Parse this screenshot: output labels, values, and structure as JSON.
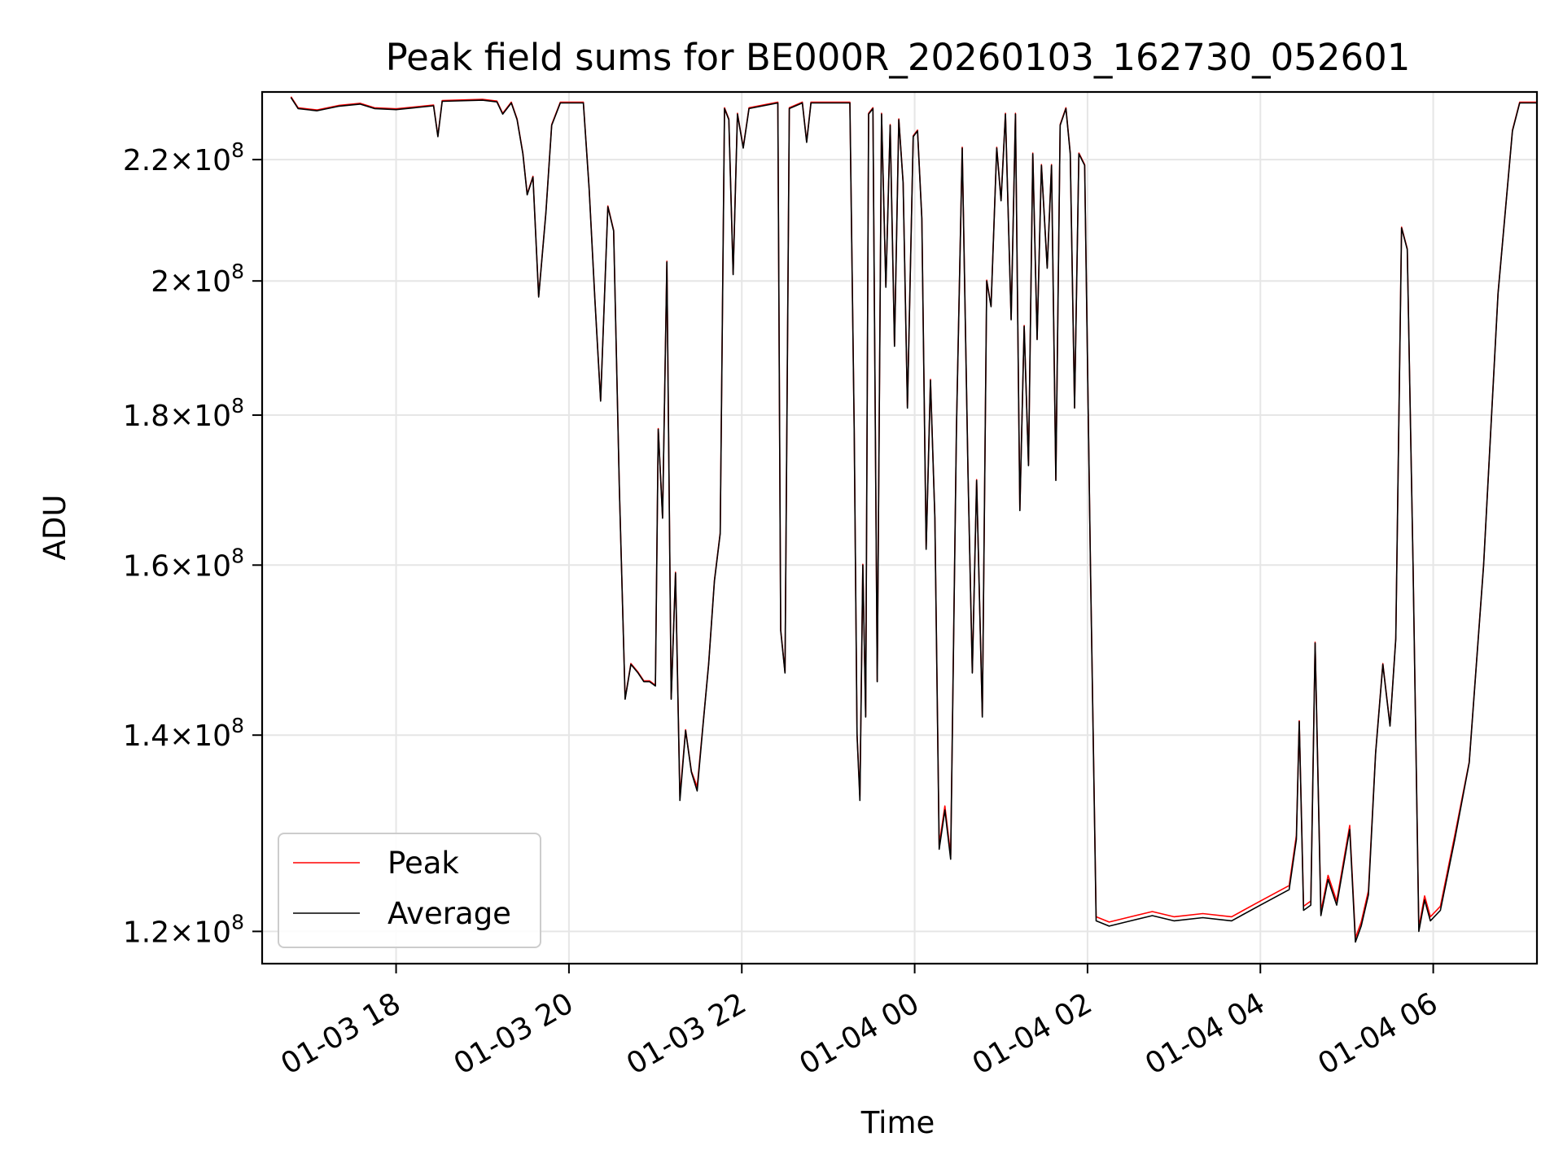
{
  "chart_data": {
    "type": "line",
    "title": "Peak field sums for BE000R_20260103_162730_052601",
    "xlabel": "Time",
    "ylabel": "ADU",
    "xlim": [
      "2026-01-03 16:27",
      "2026-01-04 07:12"
    ],
    "ylim": [
      117000000,
      232000000
    ],
    "y_scale": "log",
    "grid": true,
    "legend_position": "lower-left",
    "x_ticks": [
      {
        "t": "2026-01-03 18:00",
        "label": "01-03 18"
      },
      {
        "t": "2026-01-03 20:00",
        "label": "01-03 20"
      },
      {
        "t": "2026-01-03 22:00",
        "label": "01-03 22"
      },
      {
        "t": "2026-01-04 00:00",
        "label": "01-04 00"
      },
      {
        "t": "2026-01-04 02:00",
        "label": "01-04 02"
      },
      {
        "t": "2026-01-04 04:00",
        "label": "01-04 04"
      },
      {
        "t": "2026-01-04 06:00",
        "label": "01-04 06"
      }
    ],
    "y_ticks": [
      {
        "value": 120000000,
        "mantissa": "1.2",
        "exponent": "8"
      },
      {
        "value": 140000000,
        "mantissa": "1.4",
        "exponent": "8"
      },
      {
        "value": 160000000,
        "mantissa": "1.6",
        "exponent": "8"
      },
      {
        "value": 180000000,
        "mantissa": "1.8",
        "exponent": "8"
      },
      {
        "value": 200000000,
        "mantissa": "2",
        "exponent": "8"
      },
      {
        "value": 220000000,
        "mantissa": "2.2",
        "exponent": "8"
      }
    ],
    "series": [
      {
        "name": "Peak",
        "color": "#ff0000"
      },
      {
        "name": "Average",
        "color": "#000000"
      }
    ],
    "average_points": [
      [
        "2026-01-03 16:47",
        231000000
      ],
      [
        "2026-01-03 16:52",
        229000000
      ],
      [
        "2026-01-03 17:05",
        228600000
      ],
      [
        "2026-01-03 17:20",
        229400000
      ],
      [
        "2026-01-03 17:35",
        229800000
      ],
      [
        "2026-01-03 17:45",
        229000000
      ],
      [
        "2026-01-03 18:00",
        228800000
      ],
      [
        "2026-01-03 18:15",
        229200000
      ],
      [
        "2026-01-03 18:26",
        229500000
      ],
      [
        "2026-01-03 18:29",
        224000000
      ],
      [
        "2026-01-03 18:32",
        230300000
      ],
      [
        "2026-01-03 19:00",
        230500000
      ],
      [
        "2026-01-03 19:10",
        230200000
      ],
      [
        "2026-01-03 19:14",
        228000000
      ],
      [
        "2026-01-03 19:20",
        230000000
      ],
      [
        "2026-01-03 19:24",
        227000000
      ],
      [
        "2026-01-03 19:28",
        221000000
      ],
      [
        "2026-01-03 19:31",
        214000000
      ],
      [
        "2026-01-03 19:35",
        217000000
      ],
      [
        "2026-01-03 19:39",
        197500000
      ],
      [
        "2026-01-03 19:44",
        211000000
      ],
      [
        "2026-01-03 19:48",
        226000000
      ],
      [
        "2026-01-03 19:54",
        230000000
      ],
      [
        "2026-01-03 20:10",
        230000000
      ],
      [
        "2026-01-03 20:14",
        215000000
      ],
      [
        "2026-01-03 20:18",
        197000000
      ],
      [
        "2026-01-03 20:22",
        182000000
      ],
      [
        "2026-01-03 20:27",
        212000000
      ],
      [
        "2026-01-03 20:31",
        208000000
      ],
      [
        "2026-01-03 20:35",
        170000000
      ],
      [
        "2026-01-03 20:39",
        144000000
      ],
      [
        "2026-01-03 20:43",
        148000000
      ],
      [
        "2026-01-03 20:48",
        147000000
      ],
      [
        "2026-01-03 20:52",
        146000000
      ],
      [
        "2026-01-03 20:56",
        146000000
      ],
      [
        "2026-01-03 21:00",
        145500000
      ],
      [
        "2026-01-03 21:02",
        178000000
      ],
      [
        "2026-01-03 21:05",
        166000000
      ],
      [
        "2026-01-03 21:08",
        203000000
      ],
      [
        "2026-01-03 21:11",
        144000000
      ],
      [
        "2026-01-03 21:14",
        159000000
      ],
      [
        "2026-01-03 21:17",
        133000000
      ],
      [
        "2026-01-03 21:21",
        140500000
      ],
      [
        "2026-01-03 21:25",
        136000000
      ],
      [
        "2026-01-03 21:29",
        134000000
      ],
      [
        "2026-01-03 21:33",
        141000000
      ],
      [
        "2026-01-03 21:37",
        148000000
      ],
      [
        "2026-01-03 21:41",
        158000000
      ],
      [
        "2026-01-03 21:45",
        164000000
      ],
      [
        "2026-01-03 21:48",
        229000000
      ],
      [
        "2026-01-03 21:51",
        227000000
      ],
      [
        "2026-01-03 21:54",
        201000000
      ],
      [
        "2026-01-03 21:57",
        228000000
      ],
      [
        "2026-01-03 22:01",
        222000000
      ],
      [
        "2026-01-03 22:05",
        229000000
      ],
      [
        "2026-01-03 22:25",
        230000000
      ],
      [
        "2026-01-03 22:27",
        152000000
      ],
      [
        "2026-01-03 22:30",
        147000000
      ],
      [
        "2026-01-03 22:33",
        229000000
      ],
      [
        "2026-01-03 22:42",
        230000000
      ],
      [
        "2026-01-03 22:45",
        223000000
      ],
      [
        "2026-01-03 22:48",
        230000000
      ],
      [
        "2026-01-03 23:15",
        230000000
      ],
      [
        "2026-01-03 23:18",
        178000000
      ],
      [
        "2026-01-03 23:20",
        140000000
      ],
      [
        "2026-01-03 23:22",
        133000000
      ],
      [
        "2026-01-03 23:24",
        160000000
      ],
      [
        "2026-01-03 23:26",
        142000000
      ],
      [
        "2026-01-03 23:28",
        228000000
      ],
      [
        "2026-01-03 23:31",
        229000000
      ],
      [
        "2026-01-03 23:34",
        146000000
      ],
      [
        "2026-01-03 23:37",
        228000000
      ],
      [
        "2026-01-03 23:40",
        199000000
      ],
      [
        "2026-01-03 23:43",
        226000000
      ],
      [
        "2026-01-03 23:46",
        190000000
      ],
      [
        "2026-01-03 23:49",
        227000000
      ],
      [
        "2026-01-03 23:52",
        216000000
      ],
      [
        "2026-01-03 23:55",
        181000000
      ],
      [
        "2026-01-03 23:59",
        224000000
      ],
      [
        "2026-01-04 00:02",
        225000000
      ],
      [
        "2026-01-04 00:05",
        210000000
      ],
      [
        "2026-01-04 00:08",
        162000000
      ],
      [
        "2026-01-04 00:11",
        185000000
      ],
      [
        "2026-01-04 00:14",
        166000000
      ],
      [
        "2026-01-04 00:17",
        128000000
      ],
      [
        "2026-01-04 00:21",
        132000000
      ],
      [
        "2026-01-04 00:25",
        127000000
      ],
      [
        "2026-01-04 00:29",
        178000000
      ],
      [
        "2026-01-04 00:33",
        222000000
      ],
      [
        "2026-01-04 00:37",
        172000000
      ],
      [
        "2026-01-04 00:40",
        147000000
      ],
      [
        "2026-01-04 00:43",
        171000000
      ],
      [
        "2026-01-04 00:47",
        142000000
      ],
      [
        "2026-01-04 00:50",
        200000000
      ],
      [
        "2026-01-04 00:53",
        196000000
      ],
      [
        "2026-01-04 00:57",
        222000000
      ],
      [
        "2026-01-04 01:00",
        213000000
      ],
      [
        "2026-01-04 01:03",
        228000000
      ],
      [
        "2026-01-04 01:07",
        194000000
      ],
      [
        "2026-01-04 01:10",
        228000000
      ],
      [
        "2026-01-04 01:13",
        167000000
      ],
      [
        "2026-01-04 01:16",
        193000000
      ],
      [
        "2026-01-04 01:19",
        173000000
      ],
      [
        "2026-01-04 01:22",
        221000000
      ],
      [
        "2026-01-04 01:25",
        191000000
      ],
      [
        "2026-01-04 01:28",
        219000000
      ],
      [
        "2026-01-04 01:32",
        202000000
      ],
      [
        "2026-01-04 01:35",
        219000000
      ],
      [
        "2026-01-04 01:38",
        171000000
      ],
      [
        "2026-01-04 01:41",
        226000000
      ],
      [
        "2026-01-04 01:45",
        229000000
      ],
      [
        "2026-01-04 01:48",
        221000000
      ],
      [
        "2026-01-04 01:51",
        181000000
      ],
      [
        "2026-01-04 01:54",
        221000000
      ],
      [
        "2026-01-04 01:58",
        219000000
      ],
      [
        "2026-01-04 02:02",
        160000000
      ],
      [
        "2026-01-04 02:06",
        121000000
      ],
      [
        "2026-01-04 02:15",
        120500000
      ],
      [
        "2026-01-04 02:30",
        121000000
      ],
      [
        "2026-01-04 02:45",
        121500000
      ],
      [
        "2026-01-04 03:00",
        121000000
      ],
      [
        "2026-01-04 03:20",
        121300000
      ],
      [
        "2026-01-04 03:40",
        121000000
      ],
      [
        "2026-01-04 04:00",
        122500000
      ],
      [
        "2026-01-04 04:20",
        124000000
      ],
      [
        "2026-01-04 04:25",
        129000000
      ],
      [
        "2026-01-04 04:27",
        141500000
      ],
      [
        "2026-01-04 04:30",
        122000000
      ],
      [
        "2026-01-04 04:35",
        122500000
      ],
      [
        "2026-01-04 04:38",
        150500000
      ],
      [
        "2026-01-04 04:42",
        121500000
      ],
      [
        "2026-01-04 04:47",
        125000000
      ],
      [
        "2026-01-04 04:53",
        122500000
      ],
      [
        "2026-01-04 05:02",
        130000000
      ],
      [
        "2026-01-04 05:06",
        119000000
      ],
      [
        "2026-01-04 05:10",
        120500000
      ],
      [
        "2026-01-04 05:15",
        123500000
      ],
      [
        "2026-01-04 05:20",
        138000000
      ],
      [
        "2026-01-04 05:25",
        148000000
      ],
      [
        "2026-01-04 05:30",
        141000000
      ],
      [
        "2026-01-04 05:34",
        151000000
      ],
      [
        "2026-01-04 05:38",
        208500000
      ],
      [
        "2026-01-04 05:42",
        205000000
      ],
      [
        "2026-01-04 05:46",
        160000000
      ],
      [
        "2026-01-04 05:50",
        120000000
      ],
      [
        "2026-01-04 05:54",
        123000000
      ],
      [
        "2026-01-04 05:58",
        121000000
      ],
      [
        "2026-01-04 06:05",
        122000000
      ],
      [
        "2026-01-04 06:15",
        129000000
      ],
      [
        "2026-01-04 06:25",
        137000000
      ],
      [
        "2026-01-04 06:35",
        160000000
      ],
      [
        "2026-01-04 06:45",
        198000000
      ],
      [
        "2026-01-04 06:55",
        225000000
      ],
      [
        "2026-01-04 07:00",
        230000000
      ],
      [
        "2026-01-04 07:12",
        230000000
      ]
    ]
  }
}
